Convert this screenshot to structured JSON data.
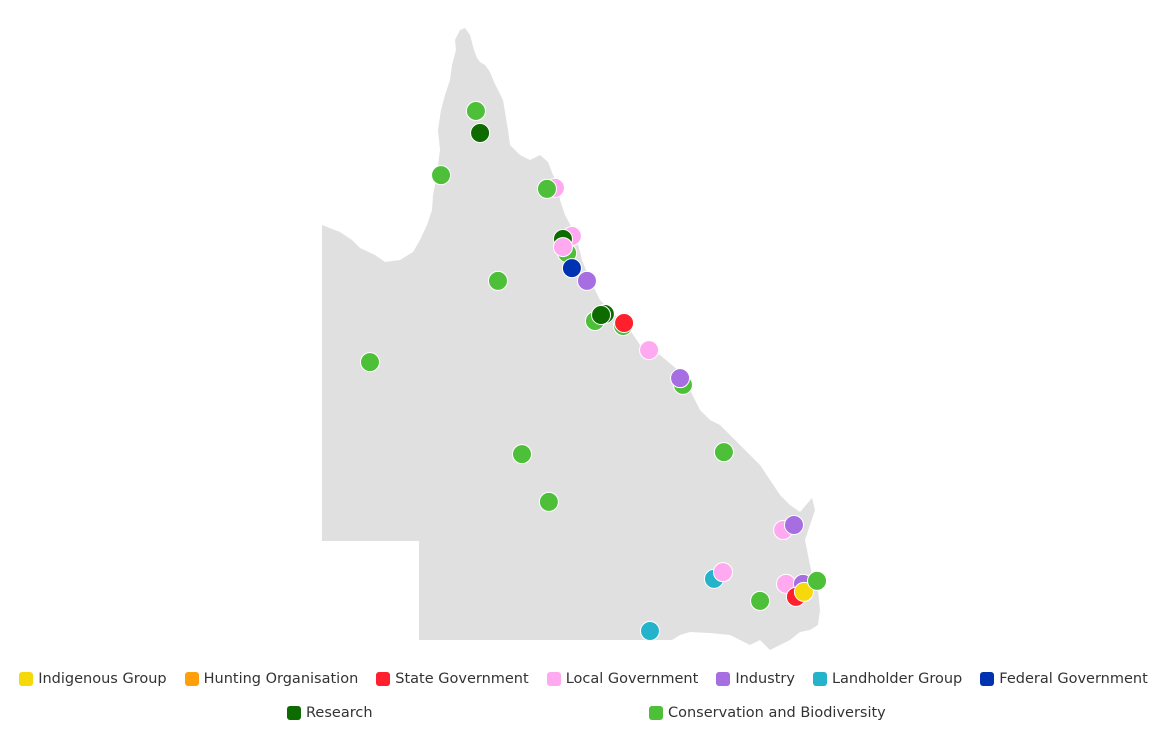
{
  "map": {
    "region_fill": "#e0e0e0",
    "point_stroke": "#ffffff"
  },
  "categories": [
    {
      "key": "indigenous",
      "label": "Indigenous Group",
      "color": "#f5d90a"
    },
    {
      "key": "hunting",
      "label": "Hunting Organisation",
      "color": "#ff9f0a"
    },
    {
      "key": "state",
      "label": "State Government",
      "color": "#ff1f2d"
    },
    {
      "key": "local",
      "label": "Local Government",
      "color": "#ffaaf0"
    },
    {
      "key": "industry",
      "label": "Industry",
      "color": "#a66ee0"
    },
    {
      "key": "landholder",
      "label": "Landholder Group",
      "color": "#25b3cc"
    },
    {
      "key": "federal",
      "label": "Federal Government",
      "color": "#0033b0"
    },
    {
      "key": "research",
      "label": "Research",
      "color": "#0d6b00"
    },
    {
      "key": "conservation",
      "label": "Conservation and Biodiversity",
      "color": "#4dbf38"
    }
  ],
  "points": [
    {
      "cat": "conservation",
      "lon": 142.81,
      "lat": -13.18
    },
    {
      "cat": "research",
      "lon": 142.94,
      "lat": -13.84
    },
    {
      "cat": "conservation",
      "lon": 141.72,
      "lat": -15.1
    },
    {
      "cat": "local",
      "lon": 145.28,
      "lat": -15.48
    },
    {
      "cat": "conservation",
      "lon": 145.03,
      "lat": -15.51
    },
    {
      "cat": "local",
      "lon": 145.81,
      "lat": -16.92
    },
    {
      "cat": "research",
      "lon": 145.53,
      "lat": -17.01
    },
    {
      "cat": "conservation",
      "lon": 145.66,
      "lat": -17.43
    },
    {
      "cat": "local",
      "lon": 145.53,
      "lat": -17.25
    },
    {
      "cat": "federal",
      "lon": 145.81,
      "lat": -17.88
    },
    {
      "cat": "industry",
      "lon": 146.28,
      "lat": -18.26
    },
    {
      "cat": "conservation",
      "lon": 143.5,
      "lat": -18.26
    },
    {
      "cat": "research",
      "lon": 146.84,
      "lat": -19.25
    },
    {
      "cat": "conservation",
      "lon": 146.53,
      "lat": -19.46
    },
    {
      "cat": "research",
      "lon": 146.72,
      "lat": -19.28
    },
    {
      "cat": "conservation",
      "lon": 147.41,
      "lat": -19.61
    },
    {
      "cat": "state",
      "lon": 147.44,
      "lat": -19.52
    },
    {
      "cat": "local",
      "lon": 148.22,
      "lat": -20.33
    },
    {
      "cat": "conservation",
      "lon": 149.28,
      "lat": -21.37
    },
    {
      "cat": "industry",
      "lon": 149.19,
      "lat": -21.17
    },
    {
      "cat": "conservation",
      "lon": 139.5,
      "lat": -20.69
    },
    {
      "cat": "conservation",
      "lon": 150.56,
      "lat": -23.38
    },
    {
      "cat": "conservation",
      "lon": 144.25,
      "lat": -23.44
    },
    {
      "cat": "conservation",
      "lon": 145.09,
      "lat": -24.87
    },
    {
      "cat": "local",
      "lon": 152.41,
      "lat": -25.71
    },
    {
      "cat": "industry",
      "lon": 152.75,
      "lat": -25.56
    },
    {
      "cat": "landholder",
      "lon": 150.25,
      "lat": -27.17
    },
    {
      "cat": "local",
      "lon": 150.53,
      "lat": -26.97
    },
    {
      "cat": "conservation",
      "lon": 151.69,
      "lat": -27.83
    },
    {
      "cat": "local",
      "lon": 152.5,
      "lat": -27.32
    },
    {
      "cat": "industry",
      "lon": 153.03,
      "lat": -27.32
    },
    {
      "cat": "state",
      "lon": 152.81,
      "lat": -27.71
    },
    {
      "cat": "indigenous",
      "lon": 153.06,
      "lat": -27.56
    },
    {
      "cat": "conservation",
      "lon": 153.47,
      "lat": -27.23
    },
    {
      "cat": "landholder",
      "lon": 148.25,
      "lat": -28.73
    }
  ]
}
